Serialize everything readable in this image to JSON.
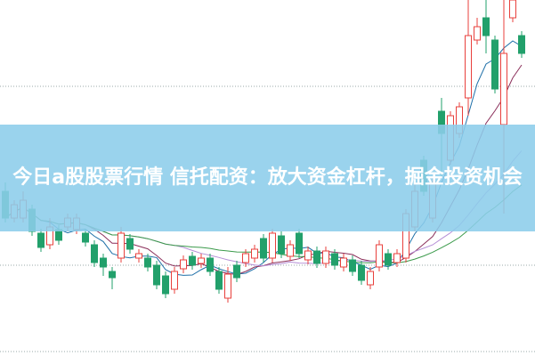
{
  "banner": {
    "title": "今日a股股票行情 信托配资：放大资金杠杆，掘金投资机会"
  },
  "chart_data": {
    "type": "candlestick",
    "title": "",
    "grid": "dotted horizontal lines",
    "colors": {
      "up": "#e8403c",
      "down": "#22a06b",
      "ma": [
        "#1e6fa8",
        "#8b2f5a",
        "#b58fd6",
        "#3a9a4a"
      ]
    },
    "candle_fields": [
      "open",
      "close",
      "high",
      "low"
    ],
    "candles": [
      [
        18.5,
        15.5,
        19.5,
        15.0
      ],
      [
        15.5,
        17.0,
        17.5,
        15.0
      ],
      [
        15.5,
        17.5,
        18.5,
        15.0
      ],
      [
        16.5,
        14.0,
        17.0,
        13.5
      ],
      [
        13.8,
        12.2,
        14.3,
        11.7
      ],
      [
        12.5,
        14.5,
        15.5,
        12.0
      ],
      [
        14.2,
        13.0,
        14.7,
        12.5
      ],
      [
        14.5,
        15.5,
        16.0,
        14.0
      ],
      [
        14.2,
        15.5,
        16.0,
        13.7
      ],
      [
        13.8,
        12.8,
        14.3,
        12.3
      ],
      [
        12.5,
        10.5,
        13.0,
        10.0
      ],
      [
        11.0,
        10.0,
        11.5,
        9.0
      ],
      [
        9.5,
        8.8,
        10.0,
        7.5
      ],
      [
        11.0,
        13.8,
        14.5,
        10.5
      ],
      [
        13.2,
        12.0,
        13.7,
        11.5
      ],
      [
        11.0,
        11.5,
        12.0,
        10.5
      ],
      [
        11.0,
        10.0,
        11.5,
        9.5
      ],
      [
        10.2,
        8.0,
        10.7,
        7.5
      ],
      [
        9.0,
        7.0,
        9.5,
        6.5
      ],
      [
        7.5,
        9.5,
        10.0,
        7.0
      ],
      [
        9.8,
        10.8,
        11.3,
        9.3
      ],
      [
        11.2,
        10.2,
        11.7,
        9.7
      ],
      [
        10.4,
        11.0,
        11.5,
        9.9
      ],
      [
        11.0,
        9.5,
        11.5,
        9.0
      ],
      [
        9.5,
        7.5,
        10.0,
        7.0
      ],
      [
        6.5,
        9.2,
        10.0,
        6.0
      ],
      [
        10.2,
        8.8,
        10.7,
        8.3
      ],
      [
        10.5,
        11.5,
        12.0,
        10.0
      ],
      [
        11.0,
        12.0,
        12.5,
        10.5
      ],
      [
        13.2,
        11.0,
        13.7,
        10.5
      ],
      [
        11.0,
        13.8,
        14.3,
        10.5
      ],
      [
        13.5,
        11.5,
        14.0,
        11.0
      ],
      [
        11.2,
        12.5,
        13.0,
        10.7
      ],
      [
        13.8,
        11.5,
        14.3,
        11.0
      ],
      [
        10.8,
        11.8,
        12.3,
        10.3
      ],
      [
        11.8,
        10.4,
        12.3,
        9.9
      ],
      [
        10.4,
        11.8,
        12.3,
        9.9
      ],
      [
        11.5,
        10.2,
        12.0,
        9.7
      ],
      [
        10.0,
        11.0,
        11.5,
        9.5
      ],
      [
        10.8,
        9.5,
        11.3,
        9.0
      ],
      [
        10.2,
        8.5,
        10.7,
        8.0
      ],
      [
        8.0,
        9.5,
        10.0,
        7.5
      ],
      [
        10.0,
        12.5,
        13.0,
        9.5
      ],
      [
        11.5,
        10.2,
        12.0,
        9.7
      ],
      [
        10.5,
        11.5,
        12.0,
        10.0
      ],
      [
        11.0,
        16.0,
        16.5,
        10.5
      ],
      [
        14.5,
        18.5,
        20.0,
        14.0
      ],
      [
        22.0,
        18.5,
        22.5,
        18.0
      ],
      [
        15.5,
        19.5,
        20.0,
        15.0
      ],
      [
        27.5,
        25.0,
        29.0,
        20.0
      ],
      [
        22.0,
        27.0,
        27.5,
        21.5
      ],
      [
        25.0,
        28.0,
        28.5,
        24.5
      ],
      [
        29.0,
        36.0,
        40.0,
        27.0
      ],
      [
        35.5,
        37.0,
        38.0,
        35.0
      ],
      [
        38.0,
        36.0,
        40.0,
        34.0
      ],
      [
        35.5,
        30.0,
        36.0,
        29.5
      ],
      [
        26.0,
        34.0,
        40.0,
        16.0
      ],
      [
        38.0,
        40.0,
        40.0,
        37.5
      ],
      [
        36.0,
        34.0,
        36.5,
        33.5
      ]
    ],
    "moving_average_periods": [
      5,
      10,
      20,
      30
    ],
    "ylim": [
      0,
      40
    ]
  }
}
